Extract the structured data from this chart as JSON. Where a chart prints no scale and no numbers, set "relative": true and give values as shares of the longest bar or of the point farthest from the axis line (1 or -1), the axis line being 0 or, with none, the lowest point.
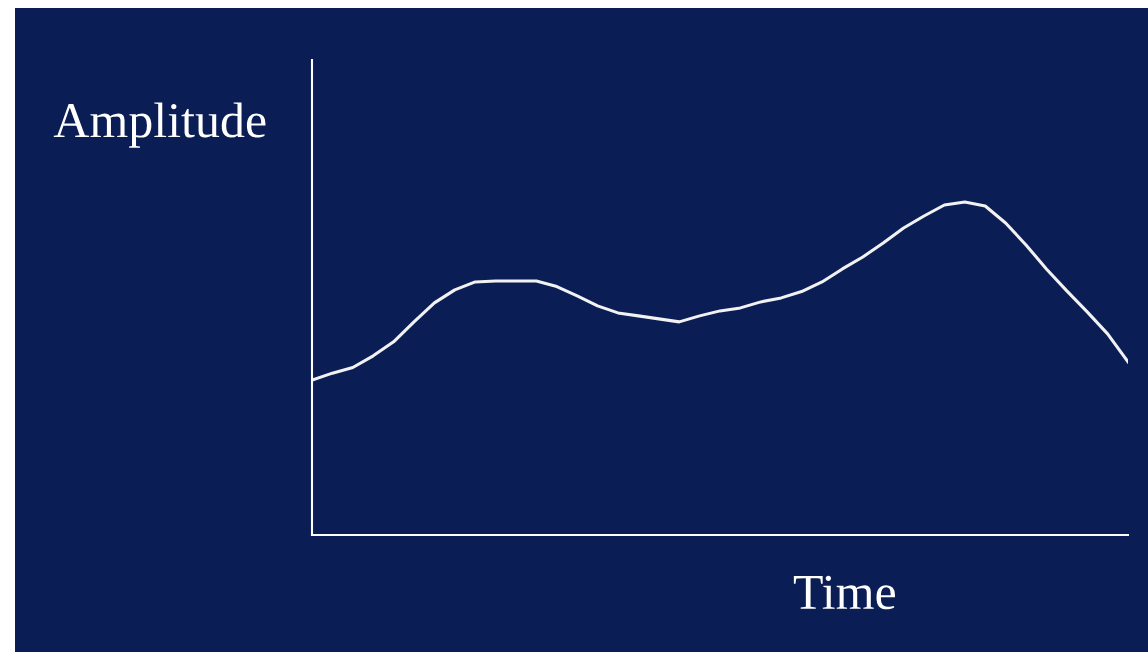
{
  "chart_data": {
    "type": "line",
    "relative": true,
    "xlabel": "Time",
    "ylabel": "Amplitude",
    "categories": [
      null,
      null,
      null,
      null,
      null,
      null,
      null,
      null,
      null,
      null,
      null,
      null,
      null,
      null,
      null,
      null,
      null,
      null,
      null,
      null,
      null,
      null,
      null,
      null,
      null,
      null,
      null,
      null,
      null,
      null,
      null,
      null,
      null,
      null,
      null,
      null,
      null,
      null,
      null,
      null,
      null
    ],
    "series": [
      {
        "color": "#f2f2f2",
        "values": [
          0.465,
          0.486,
          0.503,
          0.538,
          0.58,
          0.64,
          0.697,
          0.736,
          0.76,
          0.763,
          0.763,
          0.763,
          0.746,
          0.718,
          0.688,
          0.667,
          0.658,
          0.649,
          0.64,
          0.658,
          0.673,
          0.682,
          0.7,
          0.712,
          0.731,
          0.76,
          0.799,
          0.835,
          0.877,
          0.922,
          0.958,
          0.991,
          1.0,
          0.988,
          0.937,
          0.871,
          0.799,
          0.733,
          0.67,
          0.604,
          0.52
        ]
      }
    ]
  }
}
